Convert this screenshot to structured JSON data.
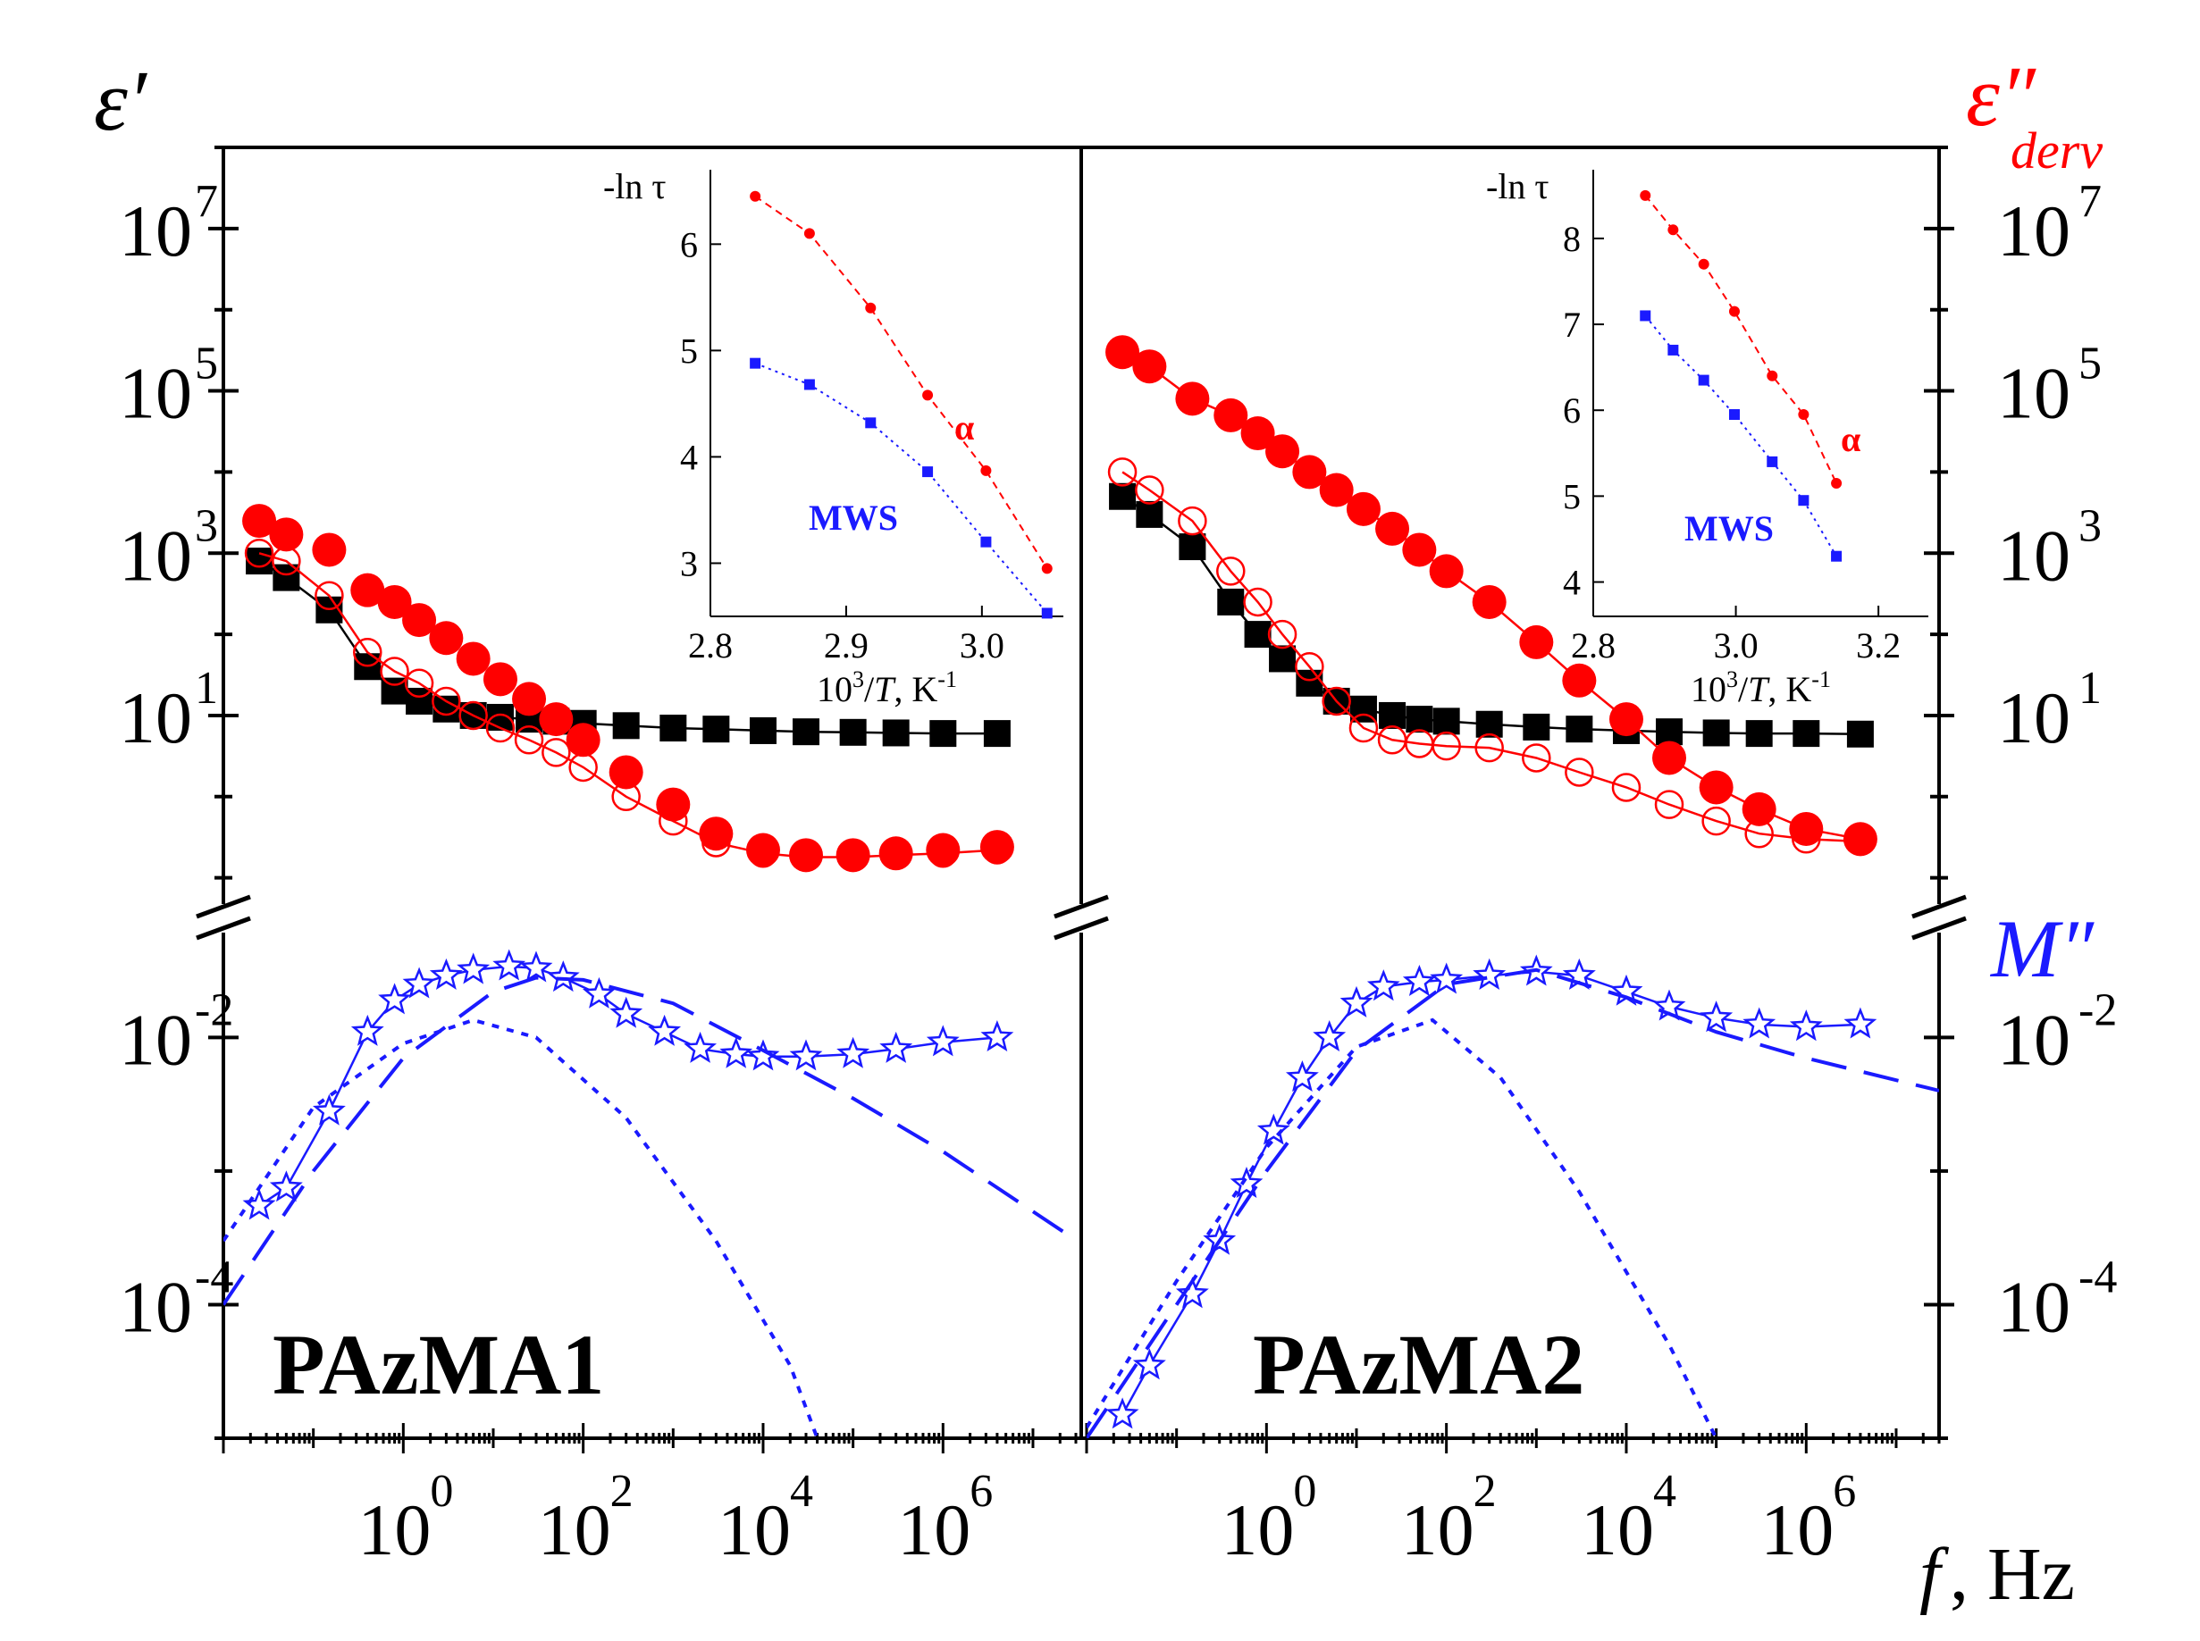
{
  "colors": {
    "black": "#000000",
    "red": "#ff0000",
    "blue": "#1a1aff"
  },
  "chart_data": {
    "type": "scatter",
    "axes_labels": {
      "left": "ε′",
      "right_top": "ε″",
      "right_top_sub": "derv",
      "right_bottom": "M″",
      "x_italic": "f",
      "x_unit": ", Hz"
    },
    "y_upper": {
      "scale": "log",
      "ylim": [
        0.05,
        100000000.0
      ],
      "ticks": [
        {
          "mant": "10",
          "exp": "7",
          "v": 10000000.0
        },
        {
          "mant": "10",
          "exp": "5",
          "v": 100000.0
        },
        {
          "mant": "10",
          "exp": "3",
          "v": 1000.0
        },
        {
          "mant": "10",
          "exp": "1",
          "v": 10.0
        }
      ]
    },
    "y_lower": {
      "scale": "log",
      "ylim": [
        1e-05,
        0.06
      ],
      "ticks": [
        {
          "mant": "10",
          "exp": "-2",
          "v": 0.01
        },
        {
          "mant": "10",
          "exp": "-4",
          "v": 0.0001
        }
      ]
    },
    "x": {
      "scale": "log",
      "ticks": [
        {
          "mant": "10",
          "exp": "0",
          "v": 1
        },
        {
          "mant": "10",
          "exp": "2",
          "v": 100
        },
        {
          "mant": "10",
          "exp": "4",
          "v": 10000
        },
        {
          "mant": "10",
          "exp": "6",
          "v": 1000000
        }
      ]
    },
    "panels": [
      {
        "label": "PAzMA1",
        "xlim": [
          0.01,
          30000000
        ],
        "series": [
          {
            "name": "ε′",
            "marker": "filled-square",
            "color": "black",
            "line": "solid",
            "x": [
              0.025,
              0.05,
              0.15,
              0.4,
              0.8,
              1.5,
              3,
              6,
              12,
              25,
              50,
              100,
              300,
              1000,
              3000,
              10000,
              30000,
              100000,
              300000,
              1000000,
              4000000
            ],
            "y": [
              800,
              500,
              200,
              40,
              20,
              15,
              12,
              10,
              9.5,
              9,
              8.5,
              8,
              7.5,
              7,
              6.8,
              6.5,
              6.3,
              6.2,
              6.1,
              6,
              6
            ]
          },
          {
            "name": "ε″ (open)",
            "marker": "open-circle",
            "color": "red",
            "line": "solid",
            "x": [
              0.025,
              0.05,
              0.15,
              0.4,
              0.8,
              1.5,
              3,
              6,
              12,
              25,
              50,
              100,
              300,
              1000,
              3000,
              10000,
              30000,
              100000,
              300000,
              1000000,
              4000000
            ],
            "y": [
              1000,
              800,
              300,
              60,
              35,
              25,
              15,
              10,
              7,
              5,
              3.5,
              2.3,
              1,
              0.5,
              0.27,
              0.2,
              0.18,
              0.18,
              0.19,
              0.2,
              0.22
            ]
          },
          {
            "name": "ε″ derv",
            "marker": "filled-circle",
            "color": "red",
            "line": "none",
            "x": [
              0.025,
              0.05,
              0.15,
              0.4,
              0.8,
              1.5,
              3,
              6,
              12,
              25,
              50,
              100,
              300,
              1000,
              3000,
              10000,
              30000,
              100000,
              300000,
              1000000,
              4000000
            ],
            "y": [
              2500,
              1700,
              1100,
              350,
              250,
              150,
              90,
              50,
              28,
              16,
              9,
              5,
              2,
              0.8,
              0.35,
              0.22,
              0.19,
              0.19,
              0.2,
              0.22,
              0.24
            ]
          },
          {
            "name": "M″",
            "marker": "open-star",
            "color": "blue",
            "line": "solid",
            "x": [
              0.025,
              0.05,
              0.15,
              0.4,
              0.8,
              1.5,
              3,
              6,
              15,
              30,
              60,
              150,
              300,
              800,
              2000,
              5000,
              10000,
              30000,
              100000,
              300000,
              1000000,
              4000000
            ],
            "y": [
              0.00055,
              0.00075,
              0.0028,
              0.011,
              0.019,
              0.025,
              0.029,
              0.032,
              0.034,
              0.033,
              0.028,
              0.021,
              0.015,
              0.011,
              0.0082,
              0.0075,
              0.0072,
              0.0072,
              0.0075,
              0.0082,
              0.0092,
              0.01
            ]
          },
          {
            "name": "M″ fit short-dash",
            "marker": "none",
            "color": "blue",
            "line": "short-dash",
            "x": [
              0.01,
              0.1,
              1,
              6,
              30,
              300,
              3000,
              20000,
              40000,
              100000
            ],
            "y": [
              0.0003,
              0.003,
              0.009,
              0.0135,
              0.01,
              0.0025,
              0.0003,
              3.5e-05,
              1e-05,
              1.5e-06
            ]
          },
          {
            "name": "M″ fit long-dash",
            "marker": "none",
            "color": "blue",
            "line": "long-dash",
            "x": [
              0.01,
              0.1,
              1,
              10,
              30,
              100,
              1000,
              10000,
              100000,
              1000000,
              25000000
            ],
            "y": [
              0.0001,
              0.001,
              0.007,
              0.022,
              0.028,
              0.027,
              0.018,
              0.008,
              0.0035,
              0.0014,
              0.00033
            ]
          }
        ],
        "inset": {
          "xlabel_pre": "10",
          "xlabel_exp": "3",
          "xlabel_mid": "/",
          "xlabel_it": "T",
          "xlabel_post": ", K",
          "xlabel_post_exp": "-1",
          "ylabel": "-ln τ",
          "xlim": [
            2.8,
            3.06
          ],
          "ylim": [
            2.5,
            6.7
          ],
          "xticks": [
            {
              "t": "2.8",
              "v": 2.8
            },
            {
              "t": "2.9",
              "v": 2.9
            },
            {
              "t": "3.0",
              "v": 3.0
            }
          ],
          "yticks": [
            {
              "t": "3",
              "v": 3
            },
            {
              "t": "4",
              "v": 4
            },
            {
              "t": "5",
              "v": 5
            },
            {
              "t": "6",
              "v": 6
            }
          ],
          "series": [
            {
              "name": "α",
              "color": "red",
              "marker": "filled-circle",
              "line": "dashed",
              "x": [
                2.833,
                2.873,
                2.918,
                2.96,
                3.003,
                3.048
              ],
              "y": [
                6.45,
                6.1,
                5.4,
                4.58,
                3.87,
                2.95
              ]
            },
            {
              "name": "MWS",
              "color": "blue",
              "marker": "filled-square",
              "line": "dotted",
              "x": [
                2.833,
                2.873,
                2.918,
                2.96,
                3.003,
                3.048
              ],
              "y": [
                4.88,
                4.68,
                4.32,
                3.86,
                3.2,
                2.53
              ]
            }
          ],
          "labels": {
            "alpha": "α",
            "mws": "MWS"
          }
        }
      },
      {
        "label": "PAzMA2",
        "xlim": [
          0.01,
          30000000
        ],
        "series": [
          {
            "name": "ε′",
            "marker": "filled-square",
            "color": "black",
            "line": "solid",
            "x": [
              0.025,
              0.05,
              0.15,
              0.4,
              0.8,
              1.5,
              3,
              6,
              12,
              25,
              50,
              100,
              300,
              1000,
              3000,
              10000,
              30000,
              100000,
              300000,
              1000000,
              4000000
            ],
            "y": [
              5000,
              3000,
              1200,
              250,
              100,
              50,
              25,
              15,
              12,
              10,
              9,
              8.5,
              7.8,
              7.2,
              6.8,
              6.5,
              6.3,
              6.1,
              6,
              6,
              5.9
            ]
          },
          {
            "name": "ε″ (open)",
            "marker": "open-circle",
            "color": "red",
            "line": "solid",
            "x": [
              0.025,
              0.05,
              0.15,
              0.4,
              0.8,
              1.5,
              3,
              6,
              12,
              25,
              50,
              100,
              300,
              1000,
              3000,
              10000,
              30000,
              100000,
              300000,
              1000000,
              4000000
            ],
            "y": [
              10000,
              6000,
              2500,
              600,
              250,
              100,
              40,
              15,
              7,
              5,
              4.5,
              4.2,
              4,
              3,
              2,
              1.3,
              0.8,
              0.5,
              0.35,
              0.3,
              0.28
            ]
          },
          {
            "name": "ε″ derv",
            "marker": "filled-circle",
            "color": "red",
            "line": "solid",
            "x": [
              0.025,
              0.05,
              0.15,
              0.4,
              0.8,
              1.5,
              3,
              6,
              12,
              25,
              50,
              100,
              300,
              1000,
              3000,
              10000,
              30000,
              100000,
              300000,
              1000000,
              4000000
            ],
            "y": [
              300000,
              200000,
              80000,
              50000,
              30000,
              18000,
              10000,
              6000,
              3500,
              2000,
              1100,
              600,
              250,
              80,
              27,
              9,
              3,
              1.3,
              0.7,
              0.4,
              0.3
            ]
          },
          {
            "name": "M″",
            "marker": "open-star",
            "color": "blue",
            "line": "solid",
            "x": [
              0.025,
              0.05,
              0.15,
              0.3,
              0.6,
              1.2,
              2.5,
              5,
              10,
              20,
              50,
              100,
              300,
              1000,
              3000,
              10000,
              30000,
              100000,
              300000,
              1000000,
              4000000
            ],
            "y": [
              1.5e-05,
              3.5e-05,
              0.00012,
              0.0003,
              0.0008,
              0.002,
              0.005,
              0.01,
              0.018,
              0.024,
              0.026,
              0.027,
              0.029,
              0.031,
              0.029,
              0.022,
              0.017,
              0.014,
              0.0125,
              0.012,
              0.0125
            ]
          },
          {
            "name": "M″ fit short-dash",
            "marker": "none",
            "color": "blue",
            "line": "short-dash",
            "x": [
              0.01,
              0.1,
              1,
              10,
              70,
              400,
              3000,
              30000,
              100000
            ],
            "y": [
              1.2e-05,
              0.00015,
              0.0015,
              0.0085,
              0.0135,
              0.005,
              0.0007,
              5e-05,
              1e-05
            ]
          },
          {
            "name": "M″ fit long-dash",
            "marker": "none",
            "color": "blue",
            "line": "long-dash",
            "x": [
              0.01,
              0.1,
              1,
              10,
              100,
              1000,
              10000,
              100000,
              1000000,
              30000000
            ],
            "y": [
              1e-05,
              0.0001,
              0.001,
              0.008,
              0.025,
              0.032,
              0.02,
              0.011,
              0.007,
              0.004
            ]
          }
        ],
        "inset": {
          "xlabel_pre": "10",
          "xlabel_exp": "3",
          "xlabel_mid": "/",
          "xlabel_it": "T",
          "xlabel_post": ", K",
          "xlabel_post_exp": "-1",
          "ylabel": "-ln τ",
          "xlim": [
            2.8,
            3.27
          ],
          "ylim": [
            3.6,
            8.8
          ],
          "xticks": [
            {
              "t": "2.8",
              "v": 2.8
            },
            {
              "t": "3.0",
              "v": 3.0
            },
            {
              "t": "3.2",
              "v": 3.2
            }
          ],
          "yticks": [
            {
              "t": "4",
              "v": 4
            },
            {
              "t": "5",
              "v": 5
            },
            {
              "t": "6",
              "v": 6
            },
            {
              "t": "7",
              "v": 7
            },
            {
              "t": "8",
              "v": 8
            }
          ],
          "series": [
            {
              "name": "α",
              "color": "red",
              "marker": "filled-circle",
              "line": "dashed",
              "x": [
                2.873,
                2.912,
                2.955,
                2.998,
                3.051,
                3.095,
                3.141
              ],
              "y": [
                8.5,
                8.1,
                7.7,
                7.15,
                6.4,
                5.95,
                5.15
              ]
            },
            {
              "name": "MWS",
              "color": "blue",
              "marker": "filled-square",
              "line": "dotted",
              "x": [
                2.873,
                2.912,
                2.955,
                2.998,
                3.051,
                3.095,
                3.141
              ],
              "y": [
                7.1,
                6.7,
                6.35,
                5.95,
                5.4,
                4.95,
                4.3
              ]
            }
          ],
          "labels": {
            "alpha": "α",
            "mws": "MWS"
          }
        }
      }
    ]
  }
}
